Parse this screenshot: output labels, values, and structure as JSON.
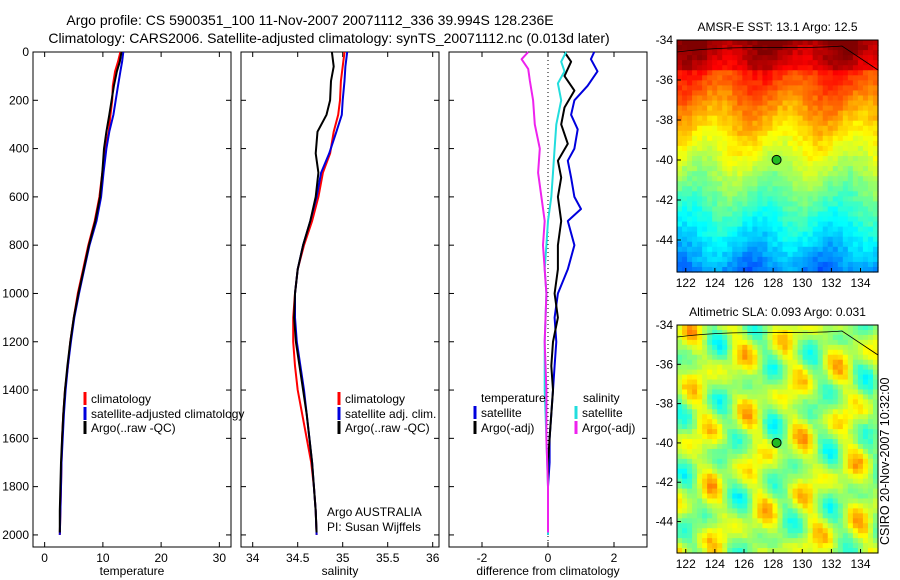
{
  "title_line1": "Argo profile: CS 5900351_100 11-Nov-2007 20071112_336 39.994S 128.236E",
  "title_line2": "Climatology: CARS2006. Satellite-adjusted climatology: synTS_20071112.nc (0.013d later)",
  "side_label": "CSIRO 20-Nov-2007 10:32:00",
  "colors": {
    "red": "#ff0000",
    "blue": "#0000dd",
    "black": "#000000",
    "cyan": "#22dddd",
    "magenta": "#ee22ee"
  },
  "depth_ticks": [
    "0",
    "200",
    "400",
    "600",
    "800",
    "1000",
    "1200",
    "1400",
    "1600",
    "1800",
    "2000"
  ],
  "chart_data": [
    {
      "type": "line",
      "xlabel": "temperature",
      "xticks": [
        "0",
        "10",
        "20",
        "30"
      ],
      "xlim": [
        -2,
        32
      ],
      "ylim": [
        0,
        2050
      ],
      "legend": [
        "climatology",
        "satellite-adjusted climatology",
        "Argo(..raw -QC)"
      ],
      "series": [
        {
          "name": "climatology",
          "color": "red",
          "points": [
            [
              13,
              0
            ],
            [
              12.6,
              40
            ],
            [
              12.1,
              80
            ],
            [
              11.7,
              140
            ],
            [
              11.6,
              200
            ],
            [
              11.3,
              260
            ],
            [
              11,
              330
            ],
            [
              10.4,
              400
            ],
            [
              9.9,
              500
            ],
            [
              9.4,
              600
            ],
            [
              8.6,
              700
            ],
            [
              7.5,
              800
            ],
            [
              6.6,
              900
            ],
            [
              5.7,
              1000
            ],
            [
              5,
              1100
            ],
            [
              4.4,
              1200
            ],
            [
              4,
              1300
            ],
            [
              3.5,
              1400
            ],
            [
              3.2,
              1500
            ],
            [
              3,
              1600
            ],
            [
              2.9,
              1700
            ],
            [
              2.8,
              1800
            ],
            [
              2.7,
              1900
            ],
            [
              2.6,
              2000
            ]
          ]
        },
        {
          "name": "satellite-adjusted climatology",
          "color": "blue",
          "points": [
            [
              13.5,
              0
            ],
            [
              13.3,
              40
            ],
            [
              13,
              80
            ],
            [
              12.6,
              140
            ],
            [
              12.2,
              200
            ],
            [
              11.8,
              260
            ],
            [
              11.1,
              330
            ],
            [
              10.6,
              400
            ],
            [
              10.1,
              500
            ],
            [
              9.7,
              600
            ],
            [
              8.9,
              700
            ],
            [
              7.7,
              800
            ],
            [
              6.8,
              900
            ],
            [
              5.9,
              1000
            ],
            [
              5.1,
              1100
            ],
            [
              4.5,
              1200
            ],
            [
              4,
              1300
            ],
            [
              3.6,
              1400
            ],
            [
              3.3,
              1500
            ],
            [
              3.1,
              1600
            ],
            [
              2.9,
              1700
            ],
            [
              2.8,
              1800
            ],
            [
              2.7,
              1900
            ],
            [
              2.6,
              2000
            ]
          ]
        },
        {
          "name": "Argo(..raw -QC)",
          "color": "black",
          "points": [
            [
              13.2,
              0
            ],
            [
              12.9,
              40
            ],
            [
              12.4,
              80
            ],
            [
              11.9,
              140
            ],
            [
              11.5,
              200
            ],
            [
              11.1,
              260
            ],
            [
              10.6,
              330
            ],
            [
              10.2,
              400
            ],
            [
              9.9,
              500
            ],
            [
              9.5,
              600
            ],
            [
              8.7,
              700
            ],
            [
              7.6,
              800
            ],
            [
              6.7,
              900
            ],
            [
              5.8,
              1000
            ],
            [
              5,
              1100
            ],
            [
              4.4,
              1200
            ],
            [
              3.9,
              1300
            ],
            [
              3.5,
              1400
            ],
            [
              3.2,
              1500
            ],
            [
              3,
              1600
            ],
            [
              2.8,
              1700
            ],
            [
              2.7,
              1800
            ],
            [
              2.6,
              1900
            ],
            [
              2.6,
              1990
            ]
          ]
        }
      ]
    },
    {
      "type": "line",
      "xlabel": "salinity",
      "xticks": [
        "34",
        "34.5",
        "35",
        "35.5",
        "36"
      ],
      "xlim": [
        33.87,
        36.07
      ],
      "ylim": [
        0,
        2050
      ],
      "legend": [
        "climatology",
        "satellite adj. clim.",
        "Argo(..raw -QC)"
      ],
      "annotation": [
        "Argo AUSTRALIA",
        "PI: Susan Wijffels"
      ],
      "series": [
        {
          "name": "climatology",
          "color": "red",
          "points": [
            [
              35.02,
              0
            ],
            [
              35.0,
              60
            ],
            [
              34.98,
              120
            ],
            [
              34.97,
              200
            ],
            [
              34.95,
              260
            ],
            [
              34.9,
              330
            ],
            [
              34.86,
              420
            ],
            [
              34.78,
              500
            ],
            [
              34.73,
              600
            ],
            [
              34.66,
              700
            ],
            [
              34.57,
              800
            ],
            [
              34.5,
              900
            ],
            [
              34.47,
              1000
            ],
            [
              34.45,
              1100
            ],
            [
              34.45,
              1200
            ],
            [
              34.47,
              1300
            ],
            [
              34.5,
              1400
            ],
            [
              34.55,
              1500
            ],
            [
              34.6,
              1600
            ],
            [
              34.65,
              1700
            ],
            [
              34.68,
              1800
            ],
            [
              34.7,
              1900
            ],
            [
              34.71,
              2000
            ]
          ]
        },
        {
          "name": "satellite adj. clim.",
          "color": "blue",
          "points": [
            [
              35.05,
              0
            ],
            [
              35.03,
              60
            ],
            [
              35.02,
              120
            ],
            [
              35.0,
              200
            ],
            [
              34.99,
              260
            ],
            [
              34.93,
              330
            ],
            [
              34.85,
              420
            ],
            [
              34.76,
              500
            ],
            [
              34.71,
              600
            ],
            [
              34.64,
              700
            ],
            [
              34.56,
              800
            ],
            [
              34.5,
              900
            ],
            [
              34.47,
              1000
            ],
            [
              34.47,
              1100
            ],
            [
              34.49,
              1200
            ],
            [
              34.53,
              1300
            ],
            [
              34.57,
              1400
            ],
            [
              34.6,
              1500
            ],
            [
              34.63,
              1600
            ],
            [
              34.66,
              1700
            ],
            [
              34.68,
              1800
            ],
            [
              34.7,
              1900
            ],
            [
              34.71,
              2000
            ]
          ]
        },
        {
          "name": "Argo(..raw -QC)",
          "color": "black",
          "points": [
            [
              34.88,
              0
            ],
            [
              34.9,
              60
            ],
            [
              34.87,
              120
            ],
            [
              34.86,
              200
            ],
            [
              34.82,
              260
            ],
            [
              34.72,
              330
            ],
            [
              34.7,
              420
            ],
            [
              34.73,
              500
            ],
            [
              34.7,
              600
            ],
            [
              34.64,
              700
            ],
            [
              34.56,
              800
            ],
            [
              34.5,
              900
            ],
            [
              34.47,
              1000
            ],
            [
              34.46,
              1100
            ],
            [
              34.48,
              1200
            ],
            [
              34.52,
              1300
            ],
            [
              34.56,
              1400
            ],
            [
              34.6,
              1500
            ],
            [
              34.63,
              1600
            ],
            [
              34.66,
              1700
            ],
            [
              34.68,
              1800
            ],
            [
              34.7,
              1900
            ],
            [
              34.71,
              1990
            ]
          ]
        }
      ]
    },
    {
      "type": "line",
      "xlabel": "difference from climatology",
      "xticks": [
        "-2",
        "0",
        "2"
      ],
      "xlim": [
        -3.0,
        3.0
      ],
      "ylim": [
        0,
        2050
      ],
      "legend_title_left": "temperature",
      "legend_title_right": "salinity",
      "legend": [
        "satellite",
        "Argo(-adj)",
        "satellite",
        "Argo(-adj)"
      ],
      "series": [
        {
          "name": "satellite",
          "color": "blue",
          "points": [
            [
              1.4,
              0
            ],
            [
              1.3,
              30
            ],
            [
              1.5,
              80
            ],
            [
              1.2,
              140
            ],
            [
              0.8,
              200
            ],
            [
              0.7,
              260
            ],
            [
              0.9,
              320
            ],
            [
              0.8,
              400
            ],
            [
              0.6,
              450
            ],
            [
              0.7,
              520
            ],
            [
              0.8,
              600
            ],
            [
              1.0,
              650
            ],
            [
              0.6,
              700
            ],
            [
              0.8,
              800
            ],
            [
              0.6,
              900
            ],
            [
              0.3,
              1000
            ],
            [
              0.2,
              1100
            ],
            [
              0.25,
              1200
            ],
            [
              0.2,
              1300
            ],
            [
              0.15,
              1400
            ],
            [
              0.1,
              1500
            ],
            [
              0.05,
              1600
            ],
            [
              0.05,
              1700
            ],
            [
              0.0,
              1800
            ],
            [
              0.0,
              2000
            ]
          ]
        },
        {
          "name": "Argo(-adj)",
          "color": "black",
          "points": [
            [
              0.5,
              0
            ],
            [
              0.7,
              40
            ],
            [
              0.5,
              100
            ],
            [
              0.8,
              160
            ],
            [
              0.5,
              230
            ],
            [
              0.4,
              300
            ],
            [
              0.6,
              380
            ],
            [
              0.3,
              450
            ],
            [
              0.4,
              520
            ],
            [
              0.3,
              600
            ],
            [
              0.4,
              700
            ],
            [
              0.3,
              800
            ],
            [
              0.3,
              900
            ],
            [
              0.2,
              1000
            ],
            [
              0.3,
              1100
            ],
            [
              0.15,
              1200
            ],
            [
              0.1,
              1300
            ],
            [
              0.15,
              1400
            ],
            [
              0.1,
              1500
            ],
            [
              0.05,
              1600
            ],
            [
              0.0,
              1700
            ],
            [
              0.0,
              1800
            ],
            [
              0.0,
              1990
            ]
          ]
        },
        {
          "name": "satellite",
          "color": "cyan",
          "points": [
            [
              0.55,
              0
            ],
            [
              0.4,
              40
            ],
            [
              0.5,
              80
            ],
            [
              0.3,
              130
            ],
            [
              0.4,
              200
            ],
            [
              0.25,
              300
            ],
            [
              0.2,
              400
            ],
            [
              0.15,
              500
            ],
            [
              0.1,
              600
            ],
            [
              0.0,
              700
            ],
            [
              -0.05,
              800
            ],
            [
              -0.1,
              900
            ],
            [
              -0.05,
              1000
            ],
            [
              -0.1,
              1200
            ],
            [
              -0.1,
              1400
            ],
            [
              -0.05,
              1600
            ],
            [
              0.0,
              1800
            ],
            [
              0.0,
              2000
            ]
          ]
        },
        {
          "name": "Argo(-adj)",
          "color": "magenta",
          "points": [
            [
              -0.6,
              0
            ],
            [
              -0.8,
              30
            ],
            [
              -0.6,
              70
            ],
            [
              -0.55,
              120
            ],
            [
              -0.45,
              200
            ],
            [
              -0.4,
              300
            ],
            [
              -0.25,
              400
            ],
            [
              -0.3,
              500
            ],
            [
              -0.2,
              600
            ],
            [
              -0.1,
              700
            ],
            [
              -0.15,
              800
            ],
            [
              -0.1,
              900
            ],
            [
              -0.05,
              1000
            ],
            [
              -0.1,
              1200
            ],
            [
              -0.05,
              1400
            ],
            [
              -0.05,
              1600
            ],
            [
              0.0,
              1800
            ],
            [
              0.0,
              1990
            ]
          ]
        }
      ]
    },
    {
      "type": "heatmap",
      "title": "AMSR-E SST: 13.1 Argo: 12.5",
      "xticks": [
        "122",
        "124",
        "126",
        "128",
        "130",
        "132",
        "134"
      ],
      "yticks": [
        "-34",
        "-36",
        "-38",
        "-40",
        "-42",
        "-44"
      ],
      "xlim": [
        121.4,
        135.2
      ],
      "ylim": [
        -45.6,
        -34
      ],
      "marker": [
        128.236,
        -39.994
      ],
      "colormap": "jet"
    },
    {
      "type": "heatmap",
      "title": "Altimetric SLA: 0.093 Argo: 0.031",
      "xticks": [
        "122",
        "124",
        "126",
        "128",
        "130",
        "132",
        "134"
      ],
      "yticks": [
        "-34",
        "-36",
        "-38",
        "-40",
        "-42",
        "-44"
      ],
      "xlim": [
        121.4,
        135.2
      ],
      "ylim": [
        -45.6,
        -34
      ],
      "marker": [
        128.236,
        -39.994
      ],
      "colormap": "jet"
    }
  ]
}
